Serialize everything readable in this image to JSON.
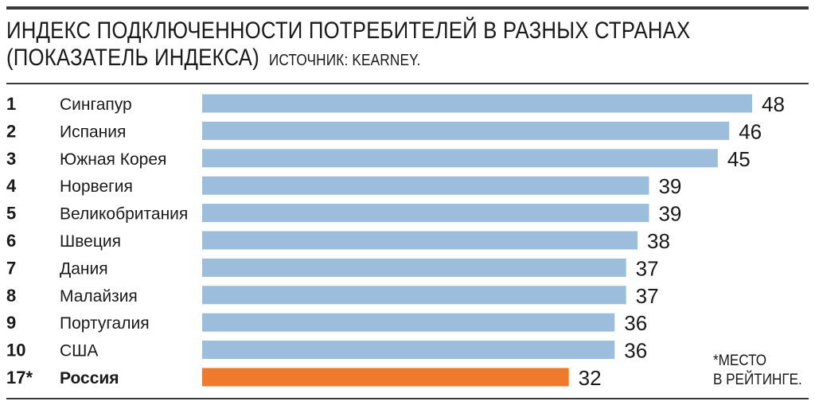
{
  "header": {
    "title": "ИНДЕКС ПОДКЛЮЧЕННОСТИ ПОТРЕБИТЕЛЕЙ В РАЗНЫХ СТРАНАХ",
    "title_line2": "(ПОКАЗАТЕЛЬ ИНДЕКСА)",
    "source": "ИСТОЧНИК: KEARNEY."
  },
  "footnote": "*МЕСТО\nВ РЕЙТИНГЕ.",
  "colors": {
    "bar": "#9dbddc",
    "highlight": "#f07a2c",
    "text": "#1a1a1a",
    "rule": "#3a3a3a"
  },
  "chart_data": {
    "type": "bar",
    "orientation": "horizontal",
    "title": "ИНДЕКС ПОДКЛЮЧЕННОСТИ ПОТРЕБИТЕЛЕЙ В РАЗНЫХ СТРАНАХ (ПОКАЗАТЕЛЬ ИНДЕКСА)",
    "ranks": [
      "1",
      "2",
      "3",
      "4",
      "5",
      "6",
      "7",
      "8",
      "9",
      "10",
      "17*"
    ],
    "categories": [
      "Сингапур",
      "Испания",
      "Южная Корея",
      "Норвегия",
      "Великобритания",
      "Швеция",
      "Дания",
      "Малайзия",
      "Португалия",
      "США",
      "Россия"
    ],
    "values": [
      48,
      46,
      45,
      39,
      39,
      38,
      37,
      37,
      36,
      36,
      32
    ],
    "highlight": "Россия",
    "xlim": [
      0,
      48
    ],
    "grid": false,
    "legend": "none"
  }
}
